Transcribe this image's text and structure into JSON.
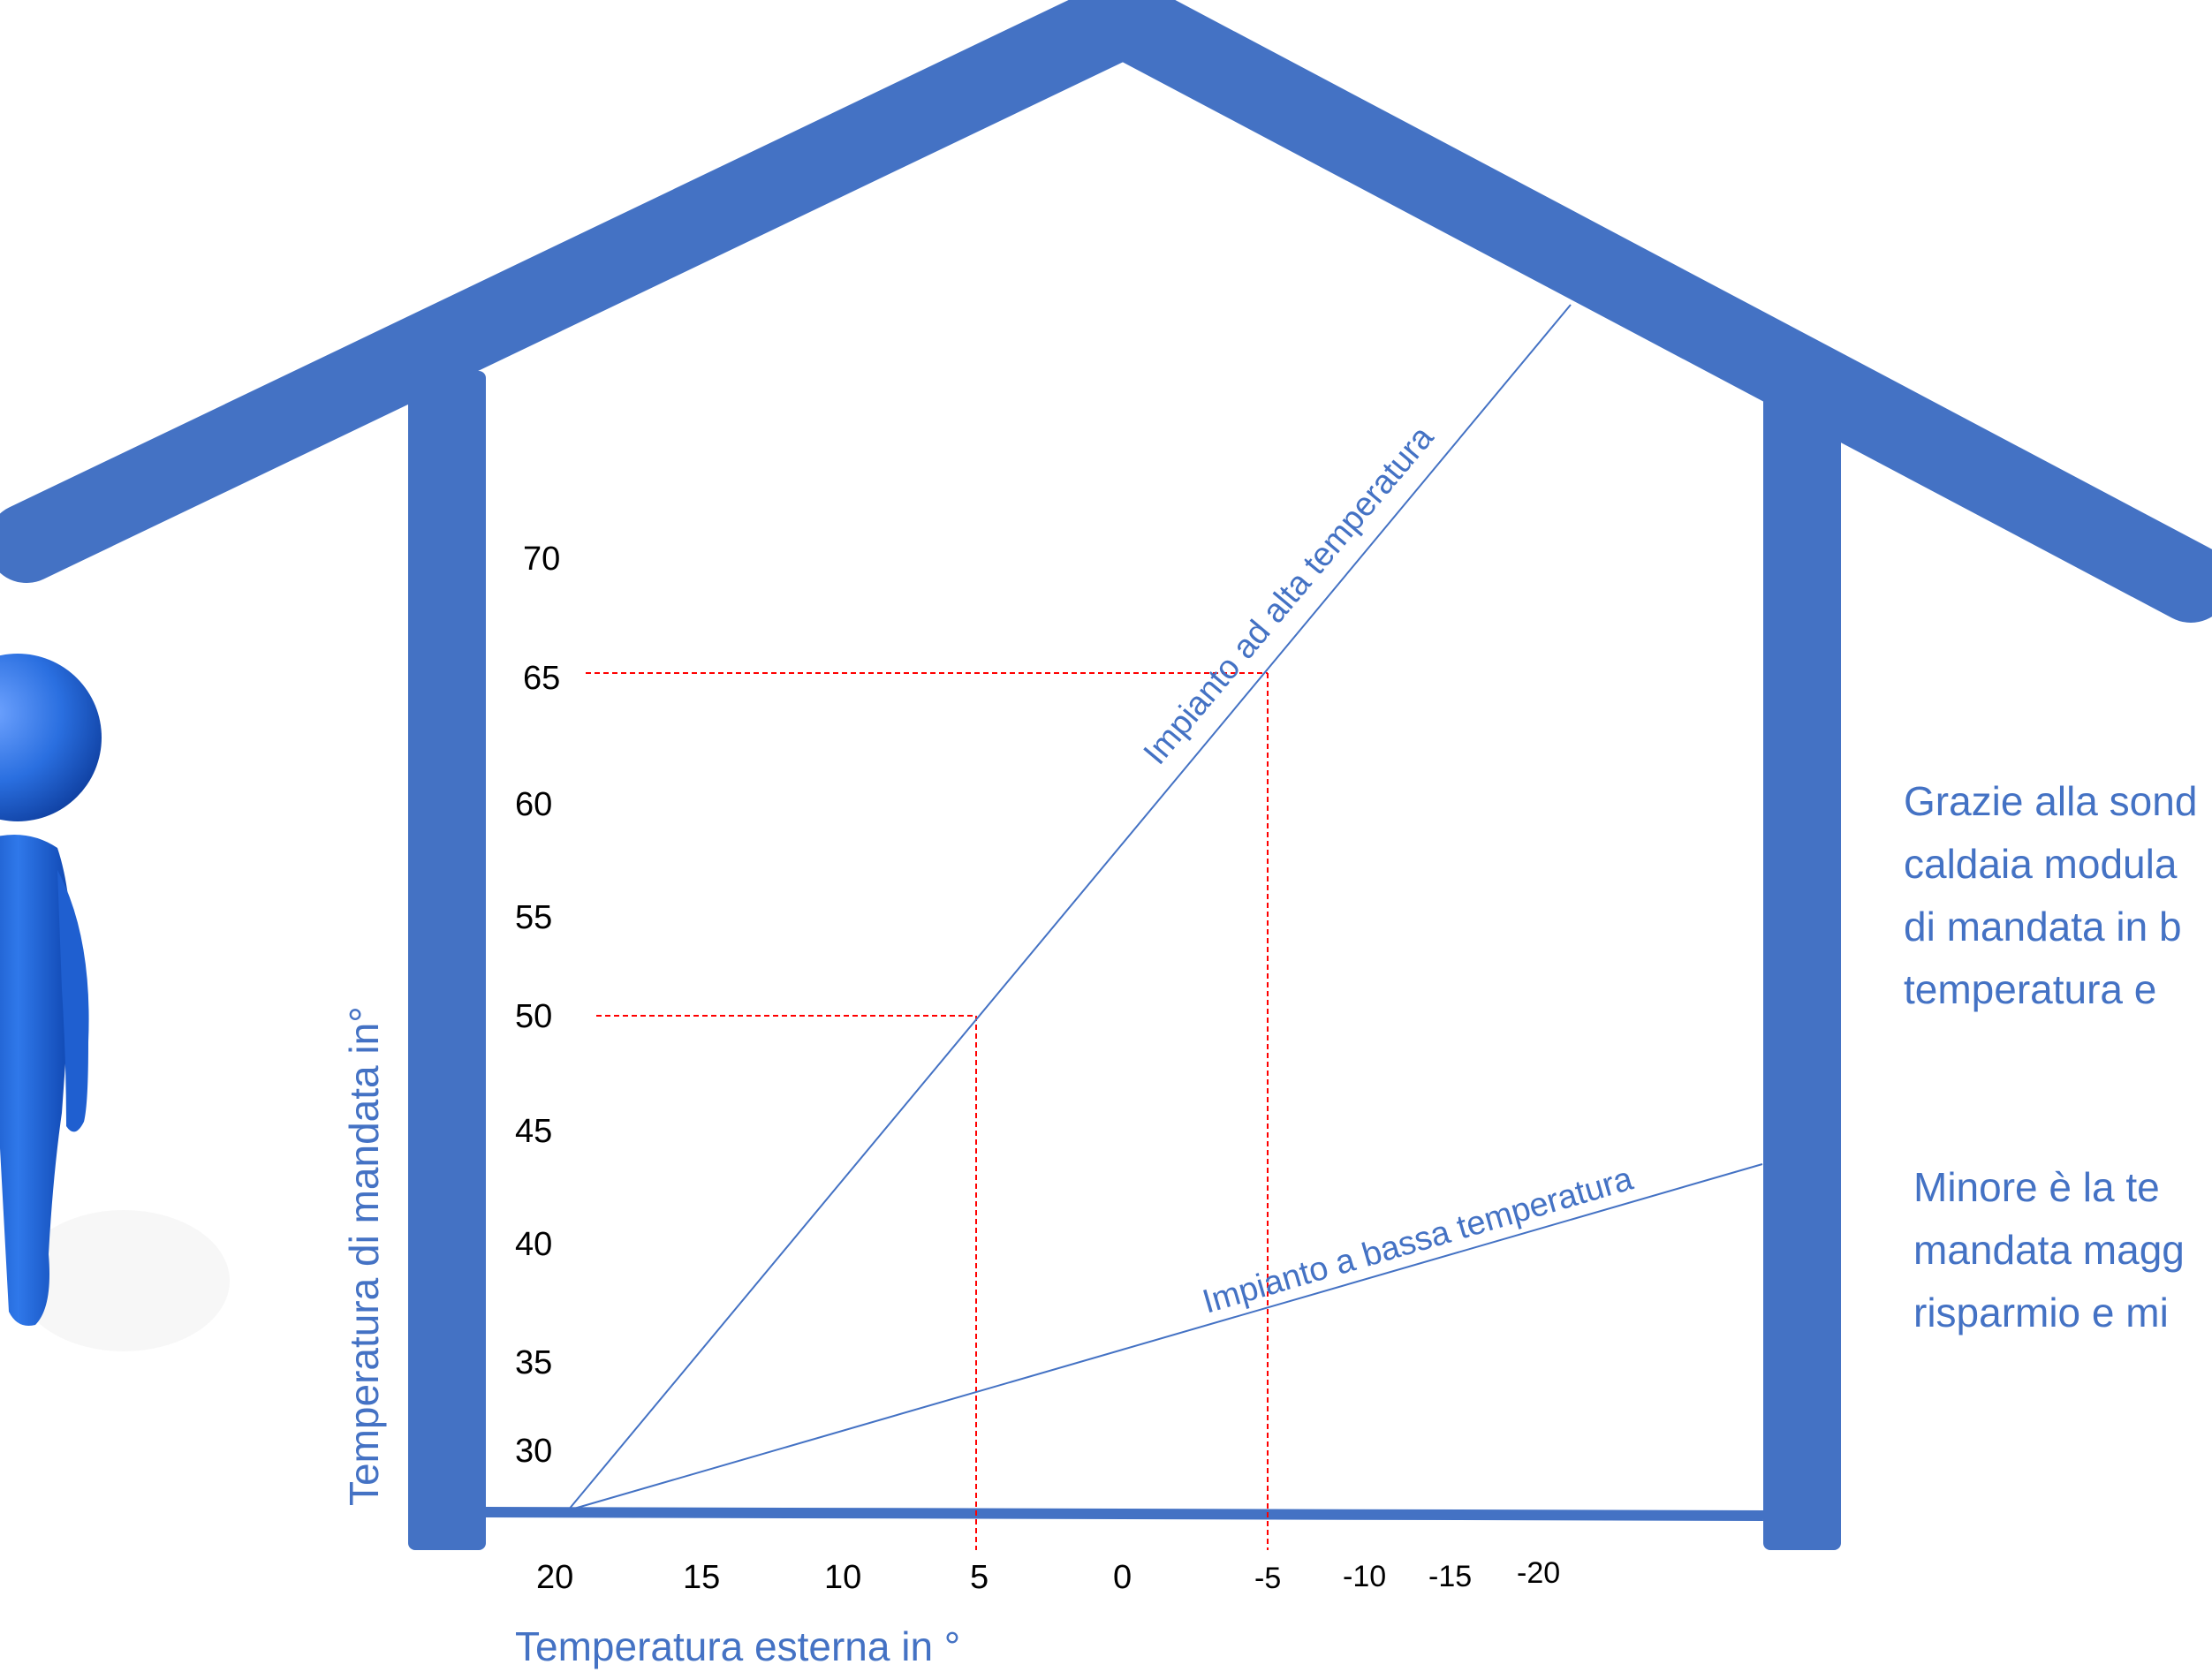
{
  "colors": {
    "house": "#4472c4",
    "lines": "#4472c4",
    "guides": "#ff0000",
    "text_blue": "#4472c4",
    "figure": "#2a6fe0"
  },
  "chart_data": {
    "type": "line",
    "xlabel": "Temperatura esterna in °",
    "ylabel": "Temperatura di mandata in°",
    "x_ticks": [
      "20",
      "15",
      "10",
      "5",
      "0",
      "-5",
      "-10",
      "-15",
      "-20"
    ],
    "y_ticks": [
      "70",
      "65",
      "60",
      "55",
      "50",
      "45",
      "40",
      "35",
      "30"
    ],
    "series": [
      {
        "name": "Impianto ad alta temperatura",
        "x": [
          20,
          5,
          -5
        ],
        "y": [
          25,
          50,
          65
        ]
      },
      {
        "name": "Impianto a bassa temperatura",
        "x": [
          20,
          5,
          -5
        ],
        "y": [
          25,
          32,
          37
        ]
      }
    ],
    "guides": [
      {
        "x": 5,
        "y": 50
      },
      {
        "x": -5,
        "y": 65
      }
    ]
  },
  "paragraphs": [
    {
      "lines": [
        "Grazie alla sond",
        "caldaia modula",
        "di mandata in b",
        "temperatura e"
      ]
    },
    {
      "lines": [
        "Minore è la te",
        "mandata magg",
        "risparmio e mi"
      ]
    }
  ]
}
